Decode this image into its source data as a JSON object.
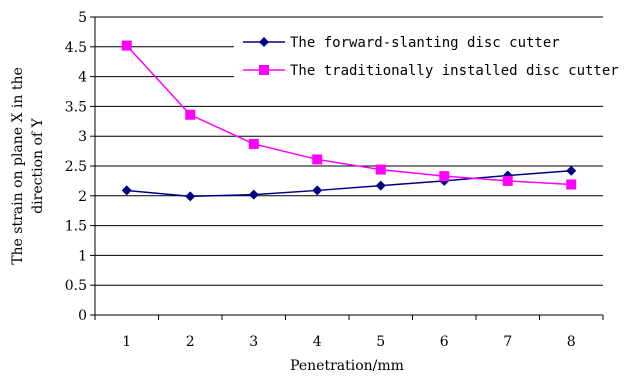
{
  "chart_data": {
    "type": "line",
    "title": "",
    "xlabel": "Penetration/mm",
    "ylabel_line1": "The strain on plane X in the",
    "ylabel_line2": "direction of Y",
    "categories": [
      "1",
      "2",
      "3",
      "4",
      "5",
      "6",
      "7",
      "8"
    ],
    "x": [
      1,
      2,
      3,
      4,
      5,
      6,
      7,
      8
    ],
    "ylim": [
      0,
      5
    ],
    "yticks": [
      "0",
      "0.5",
      "1",
      "1.5",
      "2",
      "2.5",
      "3",
      "3.5",
      "4",
      "4.5",
      "5"
    ],
    "ytick_values": [
      0,
      0.5,
      1,
      1.5,
      2,
      2.5,
      3,
      3.5,
      4,
      4.5,
      5
    ],
    "grid": "horizontal",
    "legend_position": "top-right",
    "series": [
      {
        "name": "The forward-slanting disc cutter",
        "values": [
          2.09,
          1.99,
          2.02,
          2.09,
          2.17,
          2.25,
          2.34,
          2.42
        ],
        "color": "#000080",
        "marker": "diamond"
      },
      {
        "name": "The traditionally installed disc cutter",
        "values": [
          4.52,
          3.36,
          2.87,
          2.61,
          2.44,
          2.33,
          2.25,
          2.19
        ],
        "color": "#ff00ff",
        "marker": "square"
      }
    ]
  }
}
